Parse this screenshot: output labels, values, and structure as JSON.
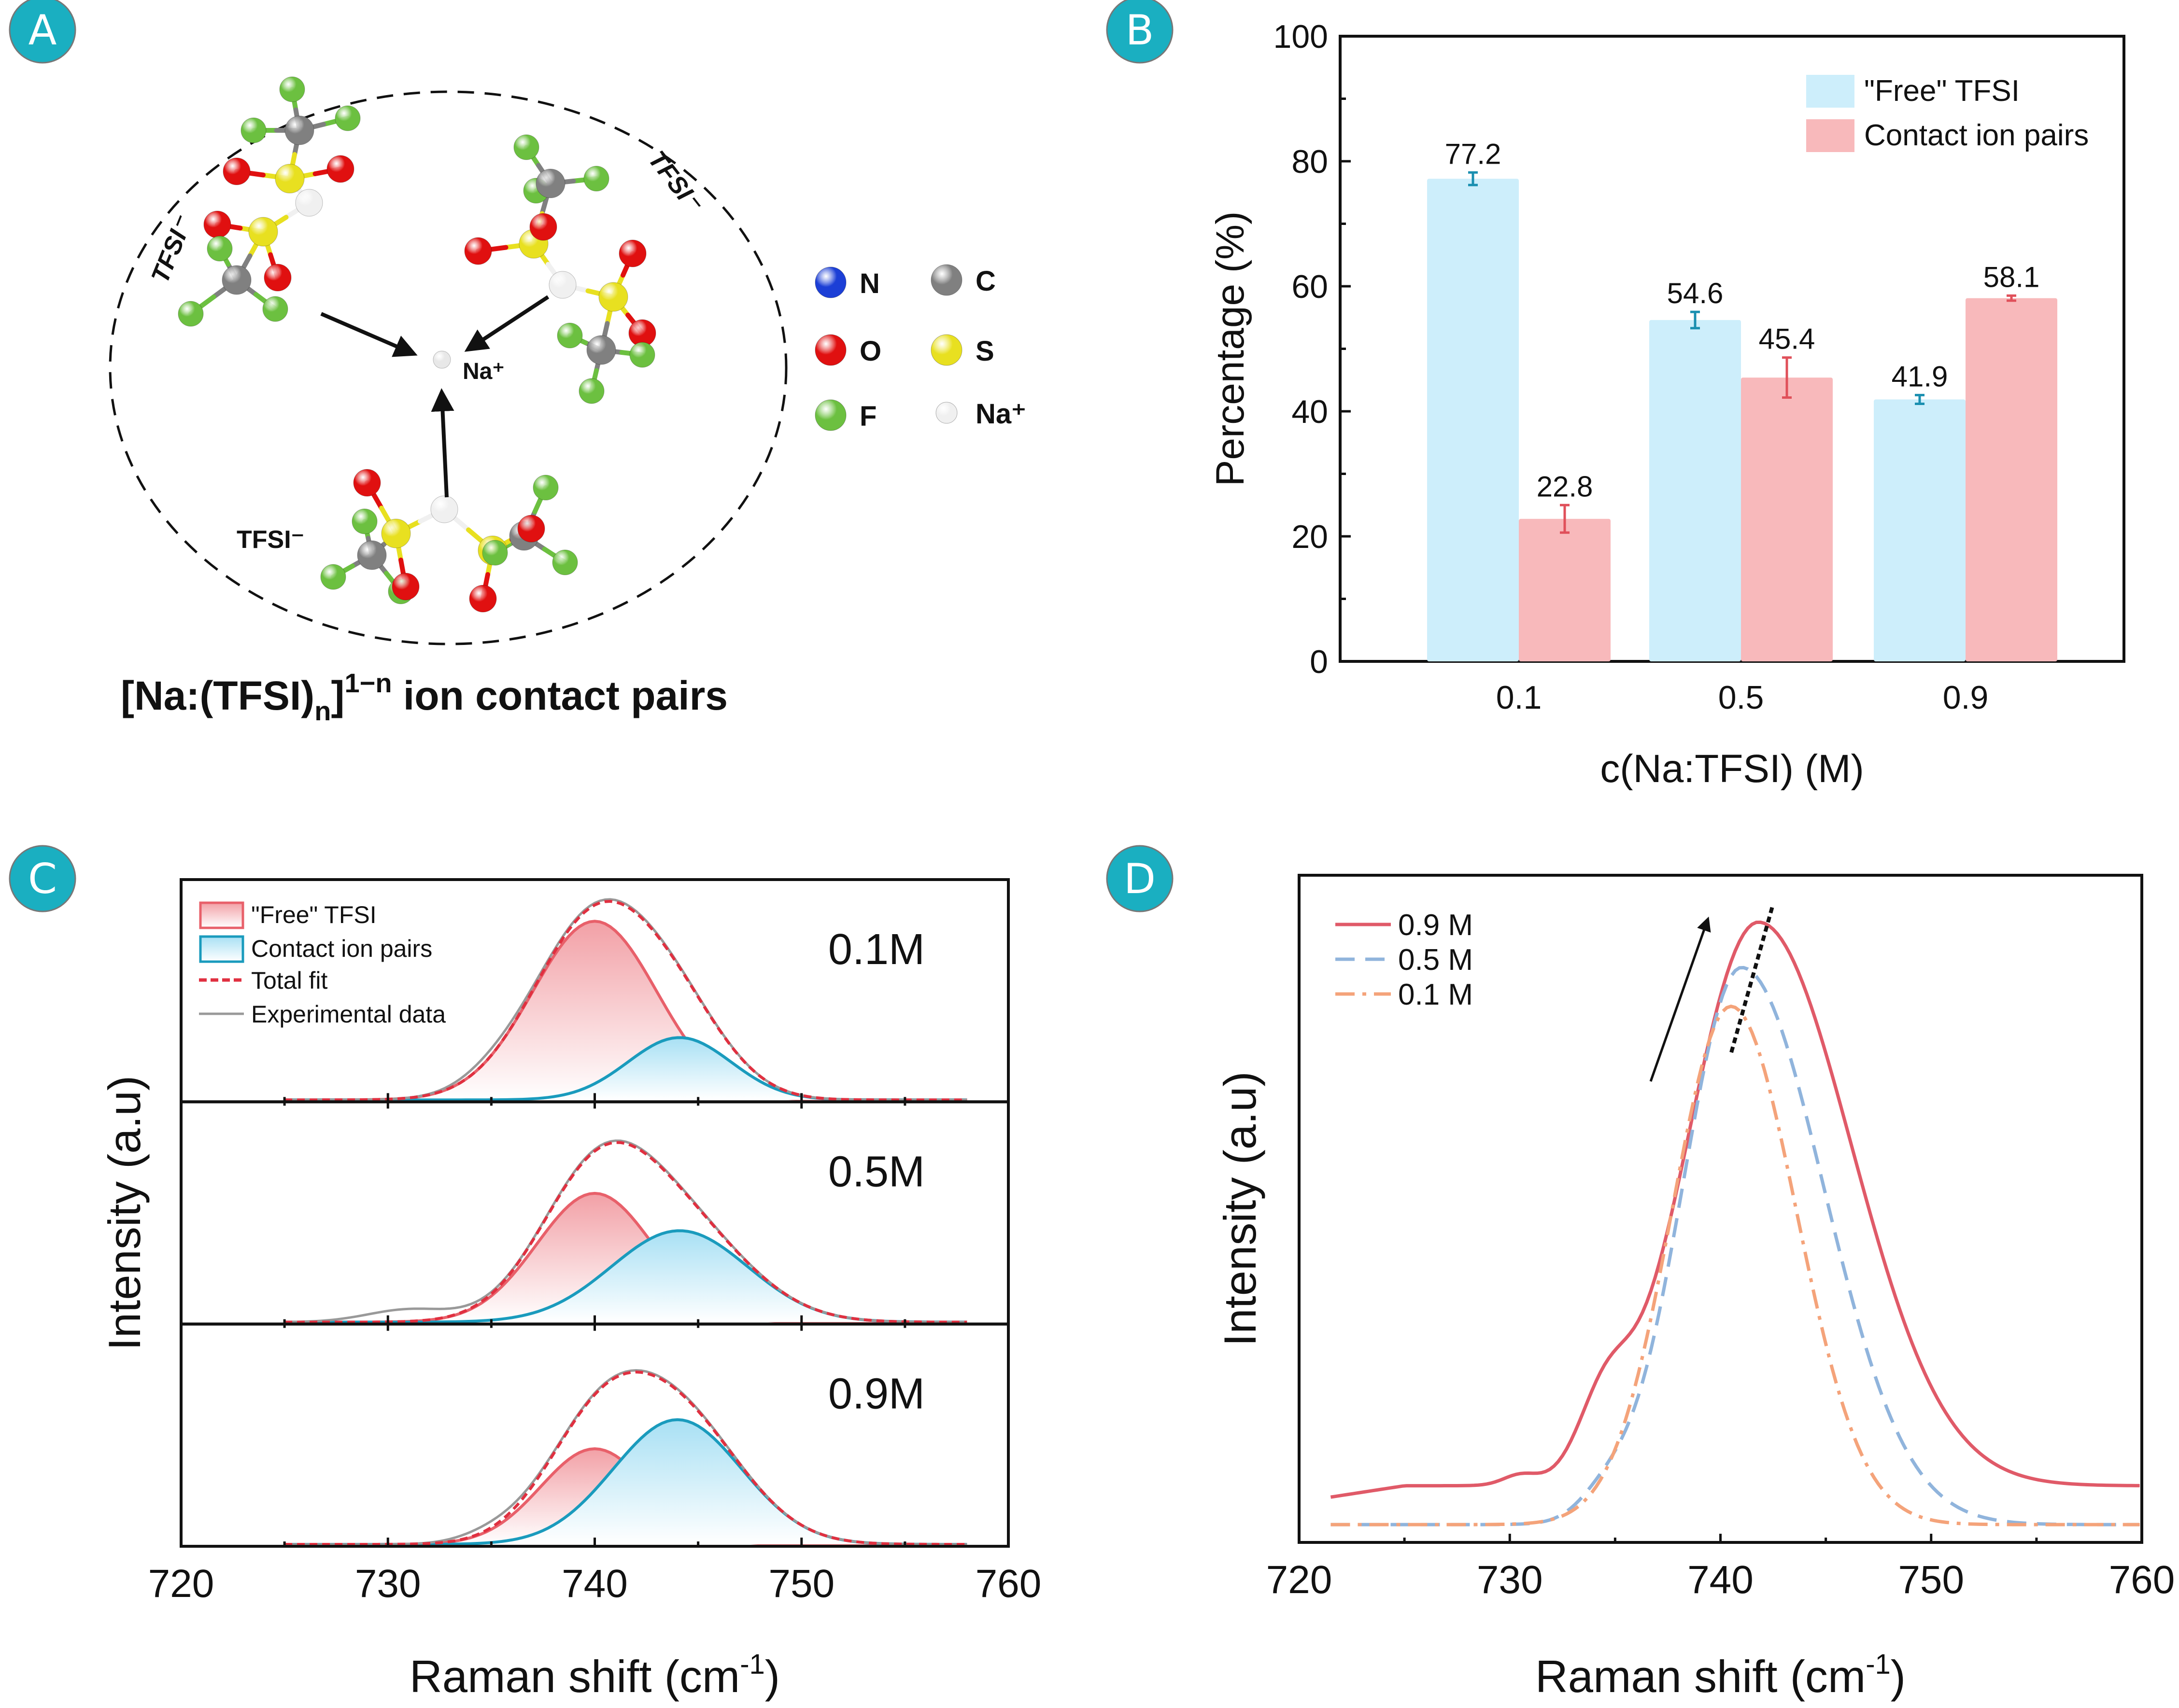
{
  "panel_labels": [
    "A",
    "B",
    "C",
    "D"
  ],
  "badge_color": "#1aafc1",
  "panelA": {
    "title": "[Na:(TFSI)n]1−n ion contact pairs",
    "title_parts": {
      "main": "[Na:(TFSI)",
      "sub": "n",
      "close": "]",
      "sup": "1−n",
      "tail": " ion contact pairs"
    },
    "cation_label": "Na⁺",
    "anion_labels": [
      "TFSI⁻",
      "TFSI⁻",
      "TFSI⁻"
    ],
    "legend": [
      {
        "symbol": "N",
        "color": "#1c3fd6"
      },
      {
        "symbol": "C",
        "color": "#808080"
      },
      {
        "symbol": "O",
        "color": "#e01010"
      },
      {
        "symbol": "S",
        "color": "#e8e020"
      },
      {
        "symbol": "F",
        "color": "#6cc040"
      },
      {
        "symbol": "Na⁺",
        "color": "#f0f0f0"
      }
    ]
  },
  "chart_data": [
    {
      "panel": "B",
      "type": "bar",
      "categories": [
        "0.1",
        "0.5",
        "0.9"
      ],
      "series": [
        {
          "name": "\"Free\" TFSI",
          "values": [
            77.2,
            54.6,
            41.9
          ],
          "errors": [
            1.0,
            1.3,
            0.7
          ],
          "color": "#cdeefb",
          "error_color": "#1a8fb0"
        },
        {
          "name": "Contact ion pairs",
          "values": [
            22.8,
            45.4,
            58.1
          ],
          "errors": [
            2.2,
            3.2,
            0.4
          ],
          "color": "#f8b9bb",
          "error_color": "#e0505a"
        }
      ],
      "data_labels": [
        "77.2",
        "22.8",
        "54.6",
        "45.4",
        "41.9",
        "58.1"
      ],
      "title": "",
      "xlabel": "c(Na:TFSI) (M)",
      "ylabel": "Percentage (%)",
      "ylim": [
        0,
        100
      ],
      "yticks": [
        "0",
        "20",
        "40",
        "60",
        "80",
        "100"
      ],
      "legend_position": "top-right",
      "grid": false
    },
    {
      "panel": "C",
      "type": "area",
      "xlabel": "Raman shift (cm-1)",
      "ylabel": "Intensity (a.u)",
      "xlim": [
        720,
        760
      ],
      "xticks": [
        "720",
        "730",
        "740",
        "750",
        "760"
      ],
      "legend": [
        "\"Free\" TFSI",
        "Contact ion pairs",
        "Total fit",
        "Experimental data"
      ],
      "legend_position": "top-left",
      "subplots": [
        {
          "label": "0.1M",
          "free": {
            "center": 740.0,
            "height": 0.86,
            "width": 3.0
          },
          "cip": {
            "center": 744.1,
            "height": 0.3,
            "width": 2.5
          },
          "total_peak": 0.88
        },
        {
          "label": "0.5M",
          "free": {
            "center": 740.0,
            "height": 0.62,
            "width": 2.8
          },
          "cip": {
            "center": 744.1,
            "height": 0.44,
            "width": 3.3
          },
          "total_peak": 0.9
        },
        {
          "label": "0.9M",
          "free": {
            "center": 740.0,
            "height": 0.46,
            "width": 2.6
          },
          "cip": {
            "center": 744.0,
            "height": 0.6,
            "width": 3.1
          },
          "total_peak": 0.86
        }
      ],
      "colors": {
        "free": "#e8606a",
        "cip": "#1a9bbd",
        "total": "#e03040",
        "exp": "#999999"
      }
    },
    {
      "panel": "D",
      "type": "line",
      "xlabel": "Raman shift (cm-1)",
      "ylabel": "Intensity (a.u)",
      "xlim": [
        720,
        760
      ],
      "xticks": [
        "720",
        "730",
        "740",
        "750",
        "760"
      ],
      "legend_position": "top-left",
      "series": [
        {
          "name": "0.9 M",
          "color": "#e05a68",
          "style": "solid",
          "peak_x": 741.8,
          "peak": 0.95,
          "baseline": 0.08
        },
        {
          "name": "0.5 M",
          "color": "#90b4dc",
          "style": "dashed",
          "peak_x": 741.0,
          "peak": 0.88,
          "baseline": 0.02
        },
        {
          "name": "0.1 M",
          "color": "#f4a37a",
          "style": "dashdot",
          "peak_x": 740.5,
          "peak": 0.82,
          "baseline": 0.02
        }
      ],
      "annotations": [
        "arrow indicating peak shift",
        "dotted trend line through peak maxima"
      ]
    }
  ]
}
